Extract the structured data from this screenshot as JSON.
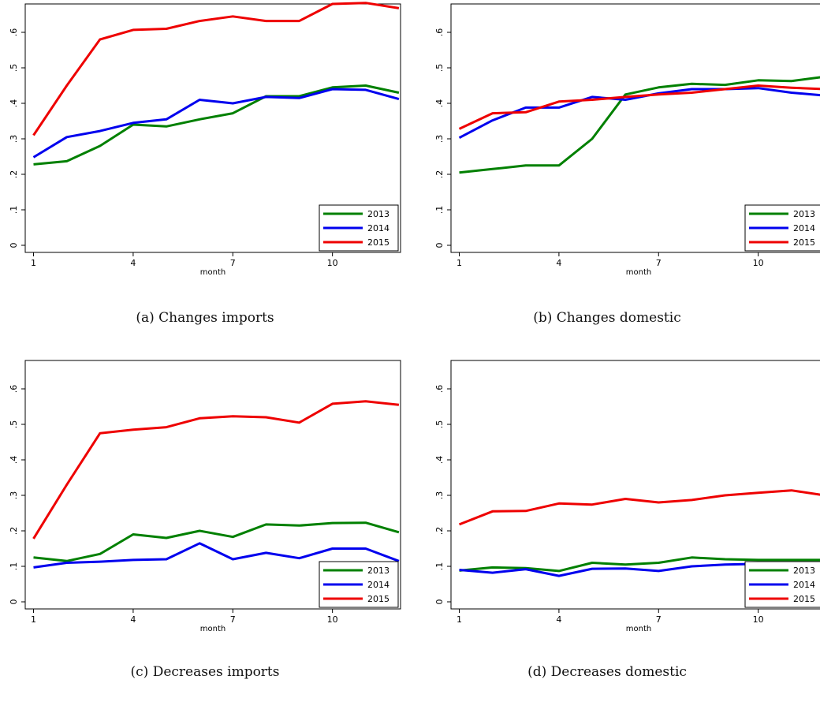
{
  "chart_data": [
    {
      "type": "line",
      "caption": "(a) Changes imports",
      "xlabel": "month",
      "ylabel": "",
      "xlim": [
        1,
        12
      ],
      "ylim": [
        0,
        0.68
      ],
      "xticks": [
        1,
        4,
        7,
        10
      ],
      "yticks": [
        0,
        0.1,
        0.2,
        0.3,
        0.4,
        0.5,
        0.6
      ],
      "ytick_labels": [
        "0",
        ".1",
        ".2",
        ".3",
        ".4",
        ".5",
        ".6"
      ],
      "legend_position": "bottom-right",
      "x": [
        1,
        2,
        3,
        4,
        5,
        6,
        7,
        8,
        9,
        10,
        11,
        12
      ],
      "series": [
        {
          "name": "2013",
          "color": "#008000",
          "values": [
            0.228,
            0.237,
            0.28,
            0.34,
            0.335,
            0.355,
            0.372,
            0.42,
            0.42,
            0.445,
            0.45,
            0.43
          ]
        },
        {
          "name": "2014",
          "color": "#0000ee",
          "values": [
            0.248,
            0.305,
            0.322,
            0.345,
            0.355,
            0.41,
            0.4,
            0.418,
            0.415,
            0.44,
            0.438,
            0.412
          ]
        },
        {
          "name": "2015",
          "color": "#ee0000",
          "values": [
            0.31,
            0.45,
            0.58,
            0.607,
            0.61,
            0.632,
            0.645,
            0.632,
            0.632,
            0.68,
            0.683,
            0.668
          ]
        }
      ]
    },
    {
      "type": "line",
      "caption": "(b) Changes domestic",
      "xlabel": "month",
      "ylabel": "",
      "xlim": [
        1,
        12
      ],
      "ylim": [
        0,
        0.68
      ],
      "xticks": [
        1,
        4,
        7,
        10
      ],
      "yticks": [
        0,
        0.1,
        0.2,
        0.3,
        0.4,
        0.5,
        0.6
      ],
      "ytick_labels": [
        "0",
        ".1",
        ".2",
        ".3",
        ".4",
        ".5",
        ".6"
      ],
      "legend_position": "bottom-right",
      "x": [
        1,
        2,
        3,
        4,
        5,
        6,
        7,
        8,
        9,
        10,
        11,
        12
      ],
      "series": [
        {
          "name": "2013",
          "color": "#008000",
          "values": [
            0.205,
            0.215,
            0.225,
            0.225,
            0.3,
            0.425,
            0.445,
            0.455,
            0.452,
            0.465,
            0.463,
            0.475
          ]
        },
        {
          "name": "2014",
          "color": "#0000ee",
          "values": [
            0.303,
            0.352,
            0.388,
            0.388,
            0.418,
            0.41,
            0.428,
            0.44,
            0.44,
            0.443,
            0.43,
            0.422
          ]
        },
        {
          "name": "2015",
          "color": "#ee0000",
          "values": [
            0.328,
            0.372,
            0.375,
            0.405,
            0.41,
            0.418,
            0.425,
            0.43,
            0.44,
            0.45,
            0.444,
            0.44
          ]
        }
      ]
    },
    {
      "type": "line",
      "caption": "(c) Decreases imports",
      "xlabel": "month",
      "ylabel": "",
      "xlim": [
        1,
        12
      ],
      "ylim": [
        0,
        0.68
      ],
      "xticks": [
        1,
        4,
        7,
        10
      ],
      "yticks": [
        0,
        0.1,
        0.2,
        0.3,
        0.4,
        0.5,
        0.6
      ],
      "ytick_labels": [
        "0",
        ".1",
        ".2",
        ".3",
        ".4",
        ".5",
        ".6"
      ],
      "legend_position": "bottom-right",
      "x": [
        1,
        2,
        3,
        4,
        5,
        6,
        7,
        8,
        9,
        10,
        11,
        12
      ],
      "series": [
        {
          "name": "2013",
          "color": "#008000",
          "values": [
            0.125,
            0.115,
            0.135,
            0.19,
            0.18,
            0.2,
            0.183,
            0.218,
            0.215,
            0.222,
            0.223,
            0.196
          ]
        },
        {
          "name": "2014",
          "color": "#0000ee",
          "values": [
            0.097,
            0.11,
            0.113,
            0.118,
            0.12,
            0.165,
            0.12,
            0.138,
            0.123,
            0.15,
            0.15,
            0.115
          ]
        },
        {
          "name": "2015",
          "color": "#ee0000",
          "values": [
            0.178,
            0.33,
            0.475,
            0.485,
            0.492,
            0.517,
            0.523,
            0.52,
            0.505,
            0.558,
            0.565,
            0.555
          ]
        }
      ]
    },
    {
      "type": "line",
      "caption": "(d) Decreases domestic",
      "xlabel": "month",
      "ylabel": "",
      "xlim": [
        1,
        12
      ],
      "ylim": [
        0,
        0.68
      ],
      "xticks": [
        1,
        4,
        7,
        10
      ],
      "yticks": [
        0,
        0.1,
        0.2,
        0.3,
        0.4,
        0.5,
        0.6
      ],
      "ytick_labels": [
        "0",
        ".1",
        ".2",
        ".3",
        ".4",
        ".5",
        ".6"
      ],
      "legend_position": "bottom-right",
      "x": [
        1,
        2,
        3,
        4,
        5,
        6,
        7,
        8,
        9,
        10,
        11,
        12
      ],
      "series": [
        {
          "name": "2013",
          "color": "#008000",
          "values": [
            0.088,
            0.097,
            0.095,
            0.087,
            0.11,
            0.105,
            0.11,
            0.125,
            0.12,
            0.118,
            0.118,
            0.118
          ]
        },
        {
          "name": "2014",
          "color": "#0000ee",
          "values": [
            0.09,
            0.082,
            0.092,
            0.073,
            0.093,
            0.094,
            0.087,
            0.1,
            0.105,
            0.107,
            0.105,
            0.105
          ]
        },
        {
          "name": "2015",
          "color": "#ee0000",
          "values": [
            0.218,
            0.255,
            0.256,
            0.277,
            0.274,
            0.29,
            0.28,
            0.287,
            0.3,
            0.307,
            0.314,
            0.3
          ]
        }
      ]
    }
  ]
}
